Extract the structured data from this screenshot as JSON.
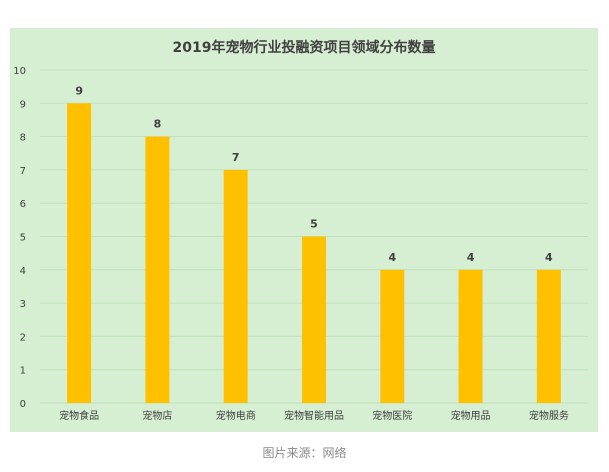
{
  "chart_data": {
    "type": "bar",
    "title": "2019年宠物行业投融资项目领域分布数量",
    "xlabel": "",
    "ylabel": "",
    "categories": [
      "宠物食品",
      "宠物店",
      "宠物电商",
      "宠物智能用品",
      "宠物医院",
      "宠物用品",
      "宠物服务"
    ],
    "values": [
      9,
      8,
      7,
      5,
      4,
      4,
      4
    ],
    "ylim": [
      0,
      10
    ],
    "yticks": [
      "0",
      "1",
      "2",
      "3",
      "4",
      "5",
      "6",
      "7",
      "8",
      "9",
      "10"
    ],
    "grid": true,
    "legend": "none",
    "colors": {
      "bar": "#FFC000",
      "background": "#D6EFD2",
      "grid": "#BFE0BB",
      "text": "#404040"
    }
  },
  "caption": "图片来源：网络"
}
